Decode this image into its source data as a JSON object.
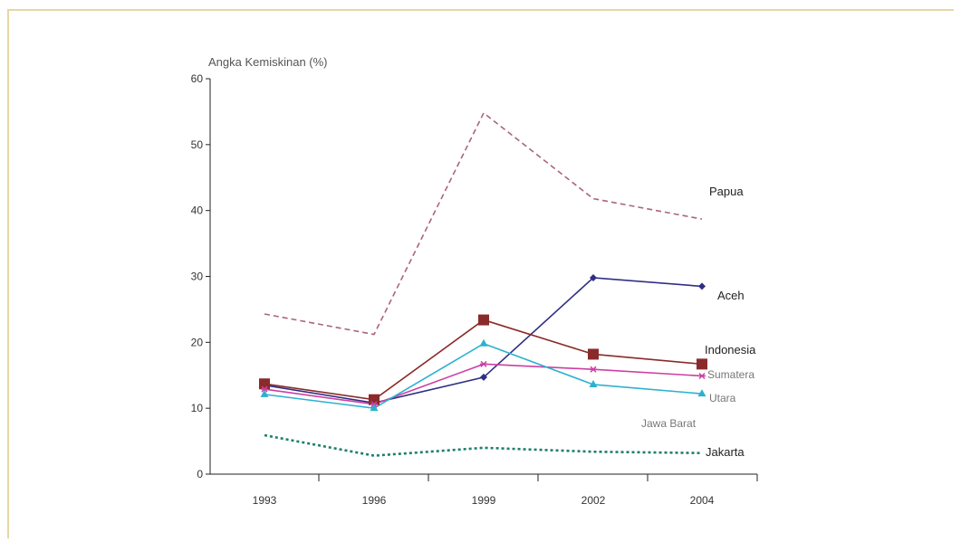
{
  "chart_data": {
    "type": "line",
    "ylabel": "Angka Kemiskinan (%)",
    "xlabel": "",
    "ylim": [
      0,
      60
    ],
    "yticks": [
      0,
      10,
      20,
      30,
      40,
      50,
      60
    ],
    "categories": [
      "1993",
      "1996",
      "1999",
      "2002",
      "2004"
    ],
    "grid": false,
    "series": [
      {
        "name": "Papua",
        "values": [
          24.3,
          21.2,
          54.8,
          41.8,
          38.7
        ],
        "color": "#a8667a",
        "style": "dashed",
        "marker": "none"
      },
      {
        "name": "Aceh",
        "values": [
          13.5,
          10.8,
          14.7,
          29.8,
          28.5
        ],
        "color": "#2e2f84",
        "style": "solid",
        "marker": "diamond"
      },
      {
        "name": "Indonesia",
        "values": [
          13.7,
          11.3,
          23.4,
          18.2,
          16.7
        ],
        "color": "#8b2a2a",
        "style": "solid",
        "marker": "square"
      },
      {
        "name": "Sumatera",
        "values": [
          12.9,
          10.6,
          16.7,
          15.9,
          14.9
        ],
        "color": "#cc3fa3",
        "style": "solid",
        "marker": "star"
      },
      {
        "name": "Utara",
        "values": [
          12.1,
          10.0,
          19.8,
          13.6,
          12.2
        ],
        "color": "#2bb1cf",
        "style": "solid",
        "marker": "triangle"
      },
      {
        "name": "Jakarta",
        "values": [
          5.9,
          2.8,
          4.0,
          3.4,
          3.2
        ],
        "color": "#1f7f6a",
        "style": "dotted",
        "marker": "none"
      }
    ],
    "annotations": [
      "Jawa Barat"
    ]
  }
}
